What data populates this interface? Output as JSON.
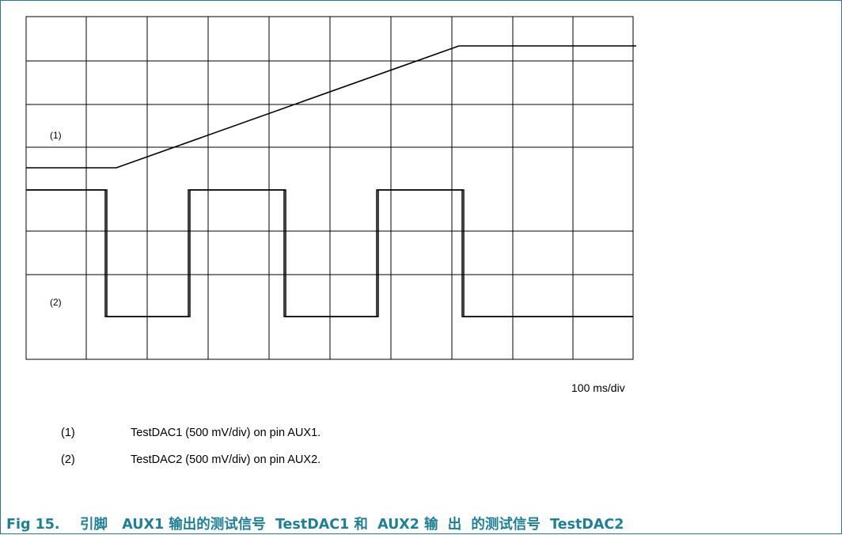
{
  "traces": {
    "trace1_tag": "(1)",
    "trace2_tag": "(2)"
  },
  "timebase": "100 ms/div",
  "legend": [
    {
      "num": "(1)",
      "text": "TestDAC1 (500 mV/div) on pin AUX1."
    },
    {
      "num": "(2)",
      "text": "TestDAC2 (500 mV/div) on pin  AUX2."
    }
  ],
  "caption": {
    "number": "Fig 15.",
    "text": "引脚   AUX1 输出的测试信号  TestDAC1 和  AUX2 输  出  的测试信号  TestDAC2"
  },
  "colors": {
    "frame": "#2b7a8c",
    "caption": "#1f7f94",
    "grid": "#000000"
  }
}
